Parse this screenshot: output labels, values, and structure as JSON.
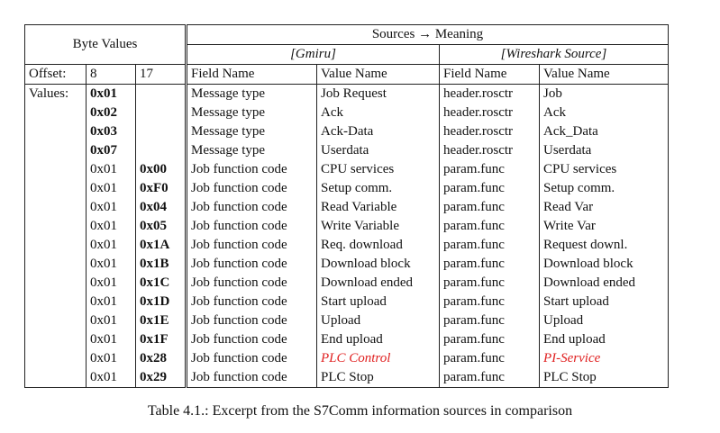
{
  "header": {
    "byte_values": "Byte Values",
    "sources_meaning": "Sources → Meaning",
    "gmiru": "[Gmiru]",
    "wireshark": "[Wireshark Source]",
    "offset_label": "Offset:",
    "offset_8": "8",
    "offset_17": "17",
    "field_name": "Field Name",
    "value_name": "Value Name"
  },
  "values_label": "Values:",
  "rows": [
    {
      "b8": "0x01",
      "b8_bold": true,
      "b17": "",
      "gf": "Message type",
      "gv": "Job Request",
      "wf": "header.rosctr",
      "wv": "Job"
    },
    {
      "b8": "0x02",
      "b8_bold": true,
      "b17": "",
      "gf": "Message type",
      "gv": "Ack",
      "wf": "header.rosctr",
      "wv": "Ack"
    },
    {
      "b8": "0x03",
      "b8_bold": true,
      "b17": "",
      "gf": "Message type",
      "gv": "Ack-Data",
      "wf": "header.rosctr",
      "wv": "Ack_Data"
    },
    {
      "b8": "0x07",
      "b8_bold": true,
      "b17": "",
      "gf": "Message type",
      "gv": "Userdata",
      "wf": "header.rosctr",
      "wv": "Userdata"
    },
    {
      "b8": "0x01",
      "b8_bold": false,
      "b17": "0x00",
      "gf": "Job function code",
      "gv": "CPU services",
      "wf": "param.func",
      "wv": "CPU services"
    },
    {
      "b8": "0x01",
      "b8_bold": false,
      "b17": "0xF0",
      "gf": "Job function code",
      "gv": "Setup comm.",
      "wf": "param.func",
      "wv": "Setup comm."
    },
    {
      "b8": "0x01",
      "b8_bold": false,
      "b17": "0x04",
      "gf": "Job function code",
      "gv": "Read Variable",
      "wf": "param.func",
      "wv": "Read Var"
    },
    {
      "b8": "0x01",
      "b8_bold": false,
      "b17": "0x05",
      "gf": "Job function code",
      "gv": "Write Variable",
      "wf": "param.func",
      "wv": "Write Var"
    },
    {
      "b8": "0x01",
      "b8_bold": false,
      "b17": "0x1A",
      "gf": "Job function code",
      "gv": "Req. download",
      "wf": "param.func",
      "wv": "Request downl."
    },
    {
      "b8": "0x01",
      "b8_bold": false,
      "b17": "0x1B",
      "gf": "Job function code",
      "gv": "Download block",
      "wf": "param.func",
      "wv": "Download block"
    },
    {
      "b8": "0x01",
      "b8_bold": false,
      "b17": "0x1C",
      "gf": "Job function code",
      "gv": "Download ended",
      "wf": "param.func",
      "wv": "Download ended"
    },
    {
      "b8": "0x01",
      "b8_bold": false,
      "b17": "0x1D",
      "gf": "Job function code",
      "gv": "Start upload",
      "wf": "param.func",
      "wv": "Start upload"
    },
    {
      "b8": "0x01",
      "b8_bold": false,
      "b17": "0x1E",
      "gf": "Job function code",
      "gv": "Upload",
      "wf": "param.func",
      "wv": "Upload"
    },
    {
      "b8": "0x01",
      "b8_bold": false,
      "b17": "0x1F",
      "gf": "Job function code",
      "gv": "End upload",
      "wf": "param.func",
      "wv": "End upload"
    },
    {
      "b8": "0x01",
      "b8_bold": false,
      "b17": "0x28",
      "gf": "Job function code",
      "gv": "PLC Control",
      "gv_red": true,
      "wf": "param.func",
      "wv": "PI-Service",
      "wv_red": true
    },
    {
      "b8": "0x01",
      "b8_bold": false,
      "b17": "0x29",
      "gf": "Job function code",
      "gv": "PLC Stop",
      "wf": "param.func",
      "wv": "PLC Stop"
    }
  ],
  "colors": {
    "highlight": "#e02020"
  },
  "caption": "Table 4.1.:  Excerpt from the S7Comm information sources in comparison"
}
